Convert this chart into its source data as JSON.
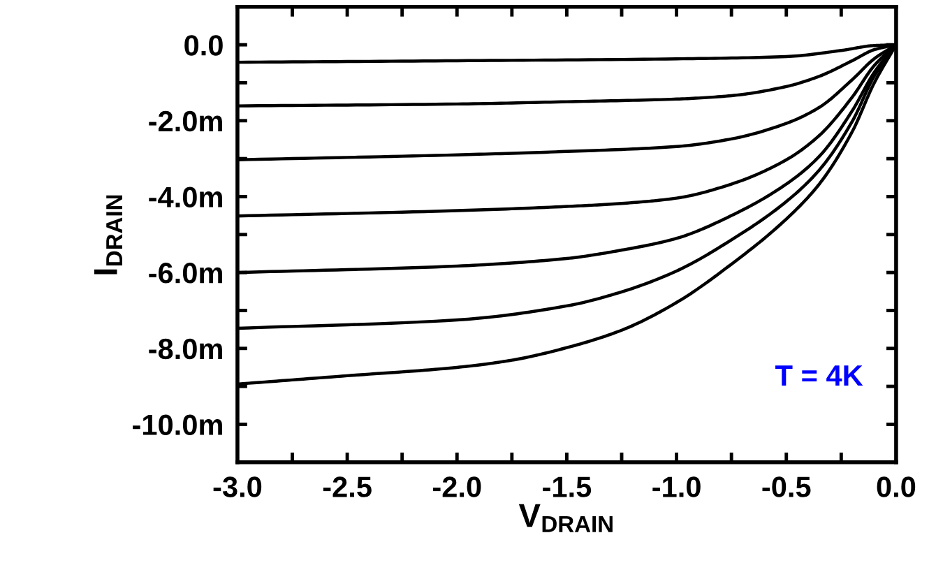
{
  "chart_data": {
    "type": "line",
    "xlabel": "V$_{DRAIN}$",
    "ylabel": "I$_{DRAIN}$",
    "annotations": [
      "T = 4K"
    ],
    "xlim": [
      -3.0,
      0.0
    ],
    "ylim": [
      -11,
      1
    ],
    "xticks": [
      {
        "value": -3.0,
        "label": "-3.0"
      },
      {
        "value": -2.5,
        "label": "-2.5"
      },
      {
        "value": -2.0,
        "label": "-2.0"
      },
      {
        "value": -1.5,
        "label": "-1.5"
      },
      {
        "value": -1.0,
        "label": "-1.0"
      },
      {
        "value": -0.5,
        "label": "-0.5"
      },
      {
        "value": 0.0,
        "label": "0.0"
      }
    ],
    "yticks": [
      {
        "value": 0,
        "label": "0.0"
      },
      {
        "value": -2,
        "label": "-2.0m"
      },
      {
        "value": -4,
        "label": "-4.0m"
      },
      {
        "value": -6,
        "label": "-6.0m"
      },
      {
        "value": -8,
        "label": "-8.0m"
      },
      {
        "value": -10,
        "label": "-10.0m"
      }
    ],
    "grid": false,
    "marker": "none",
    "line_style": "solid",
    "series": [
      {
        "color": "#000000",
        "x": [
          -3.0,
          -2.0,
          -1.0,
          -0.5,
          -0.25,
          -0.1,
          0.0
        ],
        "values": [
          -0.46,
          -0.42,
          -0.37,
          -0.31,
          -0.15,
          -0.02,
          0.0
        ]
      },
      {
        "color": "#000000",
        "x": [
          -3.0,
          -2.0,
          -1.5,
          -1.0,
          -0.75,
          -0.5,
          -0.35,
          -0.2,
          -0.1,
          0.0
        ],
        "values": [
          -1.61,
          -1.56,
          -1.5,
          -1.43,
          -1.34,
          -1.1,
          -0.83,
          -0.42,
          -0.13,
          0.0
        ]
      },
      {
        "color": "#000000",
        "x": [
          -3.0,
          -2.0,
          -1.5,
          -1.0,
          -0.75,
          -0.5,
          -0.35,
          -0.2,
          -0.1,
          0.0
        ],
        "values": [
          -3.03,
          -2.9,
          -2.81,
          -2.68,
          -2.48,
          -2.07,
          -1.65,
          -0.92,
          -0.37,
          0.0
        ]
      },
      {
        "color": "#000000",
        "x": [
          -3.0,
          -2.0,
          -1.5,
          -1.25,
          -1.0,
          -0.75,
          -0.5,
          -0.35,
          -0.2,
          -0.1,
          0.0
        ],
        "values": [
          -4.51,
          -4.37,
          -4.26,
          -4.18,
          -4.04,
          -3.67,
          -3.03,
          -2.39,
          -1.38,
          -0.55,
          0.0
        ]
      },
      {
        "color": "#000000",
        "x": [
          -3.0,
          -2.0,
          -1.5,
          -1.25,
          -1.0,
          -0.75,
          -0.5,
          -0.35,
          -0.2,
          -0.1,
          0.0
        ],
        "values": [
          -6.0,
          -5.83,
          -5.63,
          -5.41,
          -5.1,
          -4.5,
          -3.67,
          -2.94,
          -1.74,
          -0.73,
          0.0
        ]
      },
      {
        "color": "#000000",
        "x": [
          -3.0,
          -2.0,
          -1.5,
          -1.25,
          -1.0,
          -0.75,
          -0.5,
          -0.35,
          -0.2,
          -0.1,
          0.0
        ],
        "values": [
          -7.47,
          -7.25,
          -6.88,
          -6.51,
          -5.96,
          -5.14,
          -4.13,
          -3.3,
          -2.02,
          -0.83,
          0.0
        ]
      },
      {
        "color": "#000000",
        "x": [
          -3.0,
          -2.5,
          -2.0,
          -1.75,
          -1.5,
          -1.25,
          -1.0,
          -0.75,
          -0.5,
          -0.35,
          -0.2,
          -0.1,
          0.0
        ],
        "values": [
          -8.94,
          -8.72,
          -8.5,
          -8.31,
          -7.98,
          -7.52,
          -6.79,
          -5.78,
          -4.59,
          -3.67,
          -2.29,
          -1.01,
          0.0
        ]
      }
    ]
  }
}
